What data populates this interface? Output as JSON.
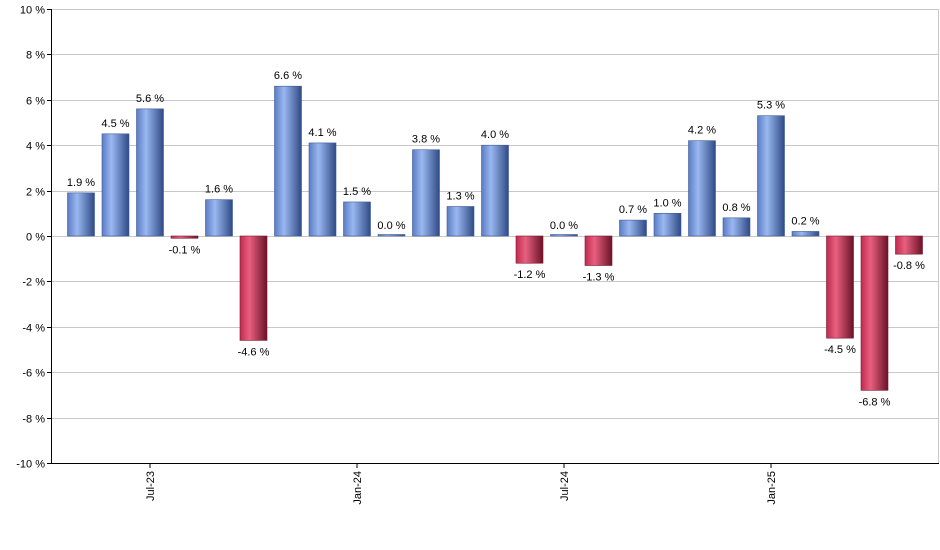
{
  "chart_data": {
    "type": "bar",
    "x": [
      "2023-06",
      "2023-07",
      "2023-08",
      "2023-09",
      "2023-10",
      "2023-11",
      "2023-12",
      "2024-01",
      "2024-02",
      "2024-03",
      "2024-04",
      "2024-05",
      "2024-06",
      "2024-07",
      "2024-08",
      "2024-09",
      "2024-10",
      "2024-11",
      "2024-12",
      "2025-01",
      "2025-02",
      "2025-03",
      "2025-04",
      "2025-05",
      "2025-06"
    ],
    "values": [
      1.9,
      4.5,
      5.6,
      -0.1,
      1.6,
      -4.6,
      6.6,
      4.1,
      1.5,
      0.0,
      3.8,
      1.3,
      4.0,
      -1.2,
      0.0,
      -1.3,
      0.7,
      1.0,
      4.2,
      0.8,
      5.3,
      0.2,
      -4.5,
      -6.8,
      -0.8
    ],
    "data_labels": [
      "1.9 %",
      "4.5 %",
      "5.6 %",
      "-0.1 %",
      "1.6 %",
      "-4.6 %",
      "6.6 %",
      "4.1 %",
      "1.5 %",
      "0.0 %",
      "3.8 %",
      "1.3 %",
      "4.0 %",
      "-1.2 %",
      "0.0 %",
      "-1.3 %",
      "0.7 %",
      "1.0 %",
      "4.2 %",
      "0.8 %",
      "5.3 %",
      "0.2 %",
      "-4.5 %",
      "-6.8 %",
      "-0.8 %"
    ],
    "x_ticks": [
      {
        "index": 2,
        "label": "Jul-23"
      },
      {
        "index": 8,
        "label": "Jan-24"
      },
      {
        "index": 14,
        "label": "Jul-24"
      },
      {
        "index": 20,
        "label": "Jan-25"
      }
    ],
    "y_ticks": [
      "10 %",
      "8 %",
      "6 %",
      "4 %",
      "2 %",
      "0 %",
      "-2 %",
      "-4 %",
      "-6 %",
      "-8 %",
      "-10 %"
    ],
    "y_tick_values": [
      10,
      8,
      6,
      4,
      2,
      0,
      -2,
      -4,
      -6,
      -8,
      -10
    ],
    "ylim": [
      -10,
      10
    ],
    "grid": true,
    "legend": "none",
    "colors": {
      "positive": "#7f9fe0",
      "positive_dark": "#3f5a98",
      "negative": "#e0446a",
      "negative_dark": "#7a1830",
      "grid": "#c8c8c8",
      "axis": "#000000"
    }
  }
}
